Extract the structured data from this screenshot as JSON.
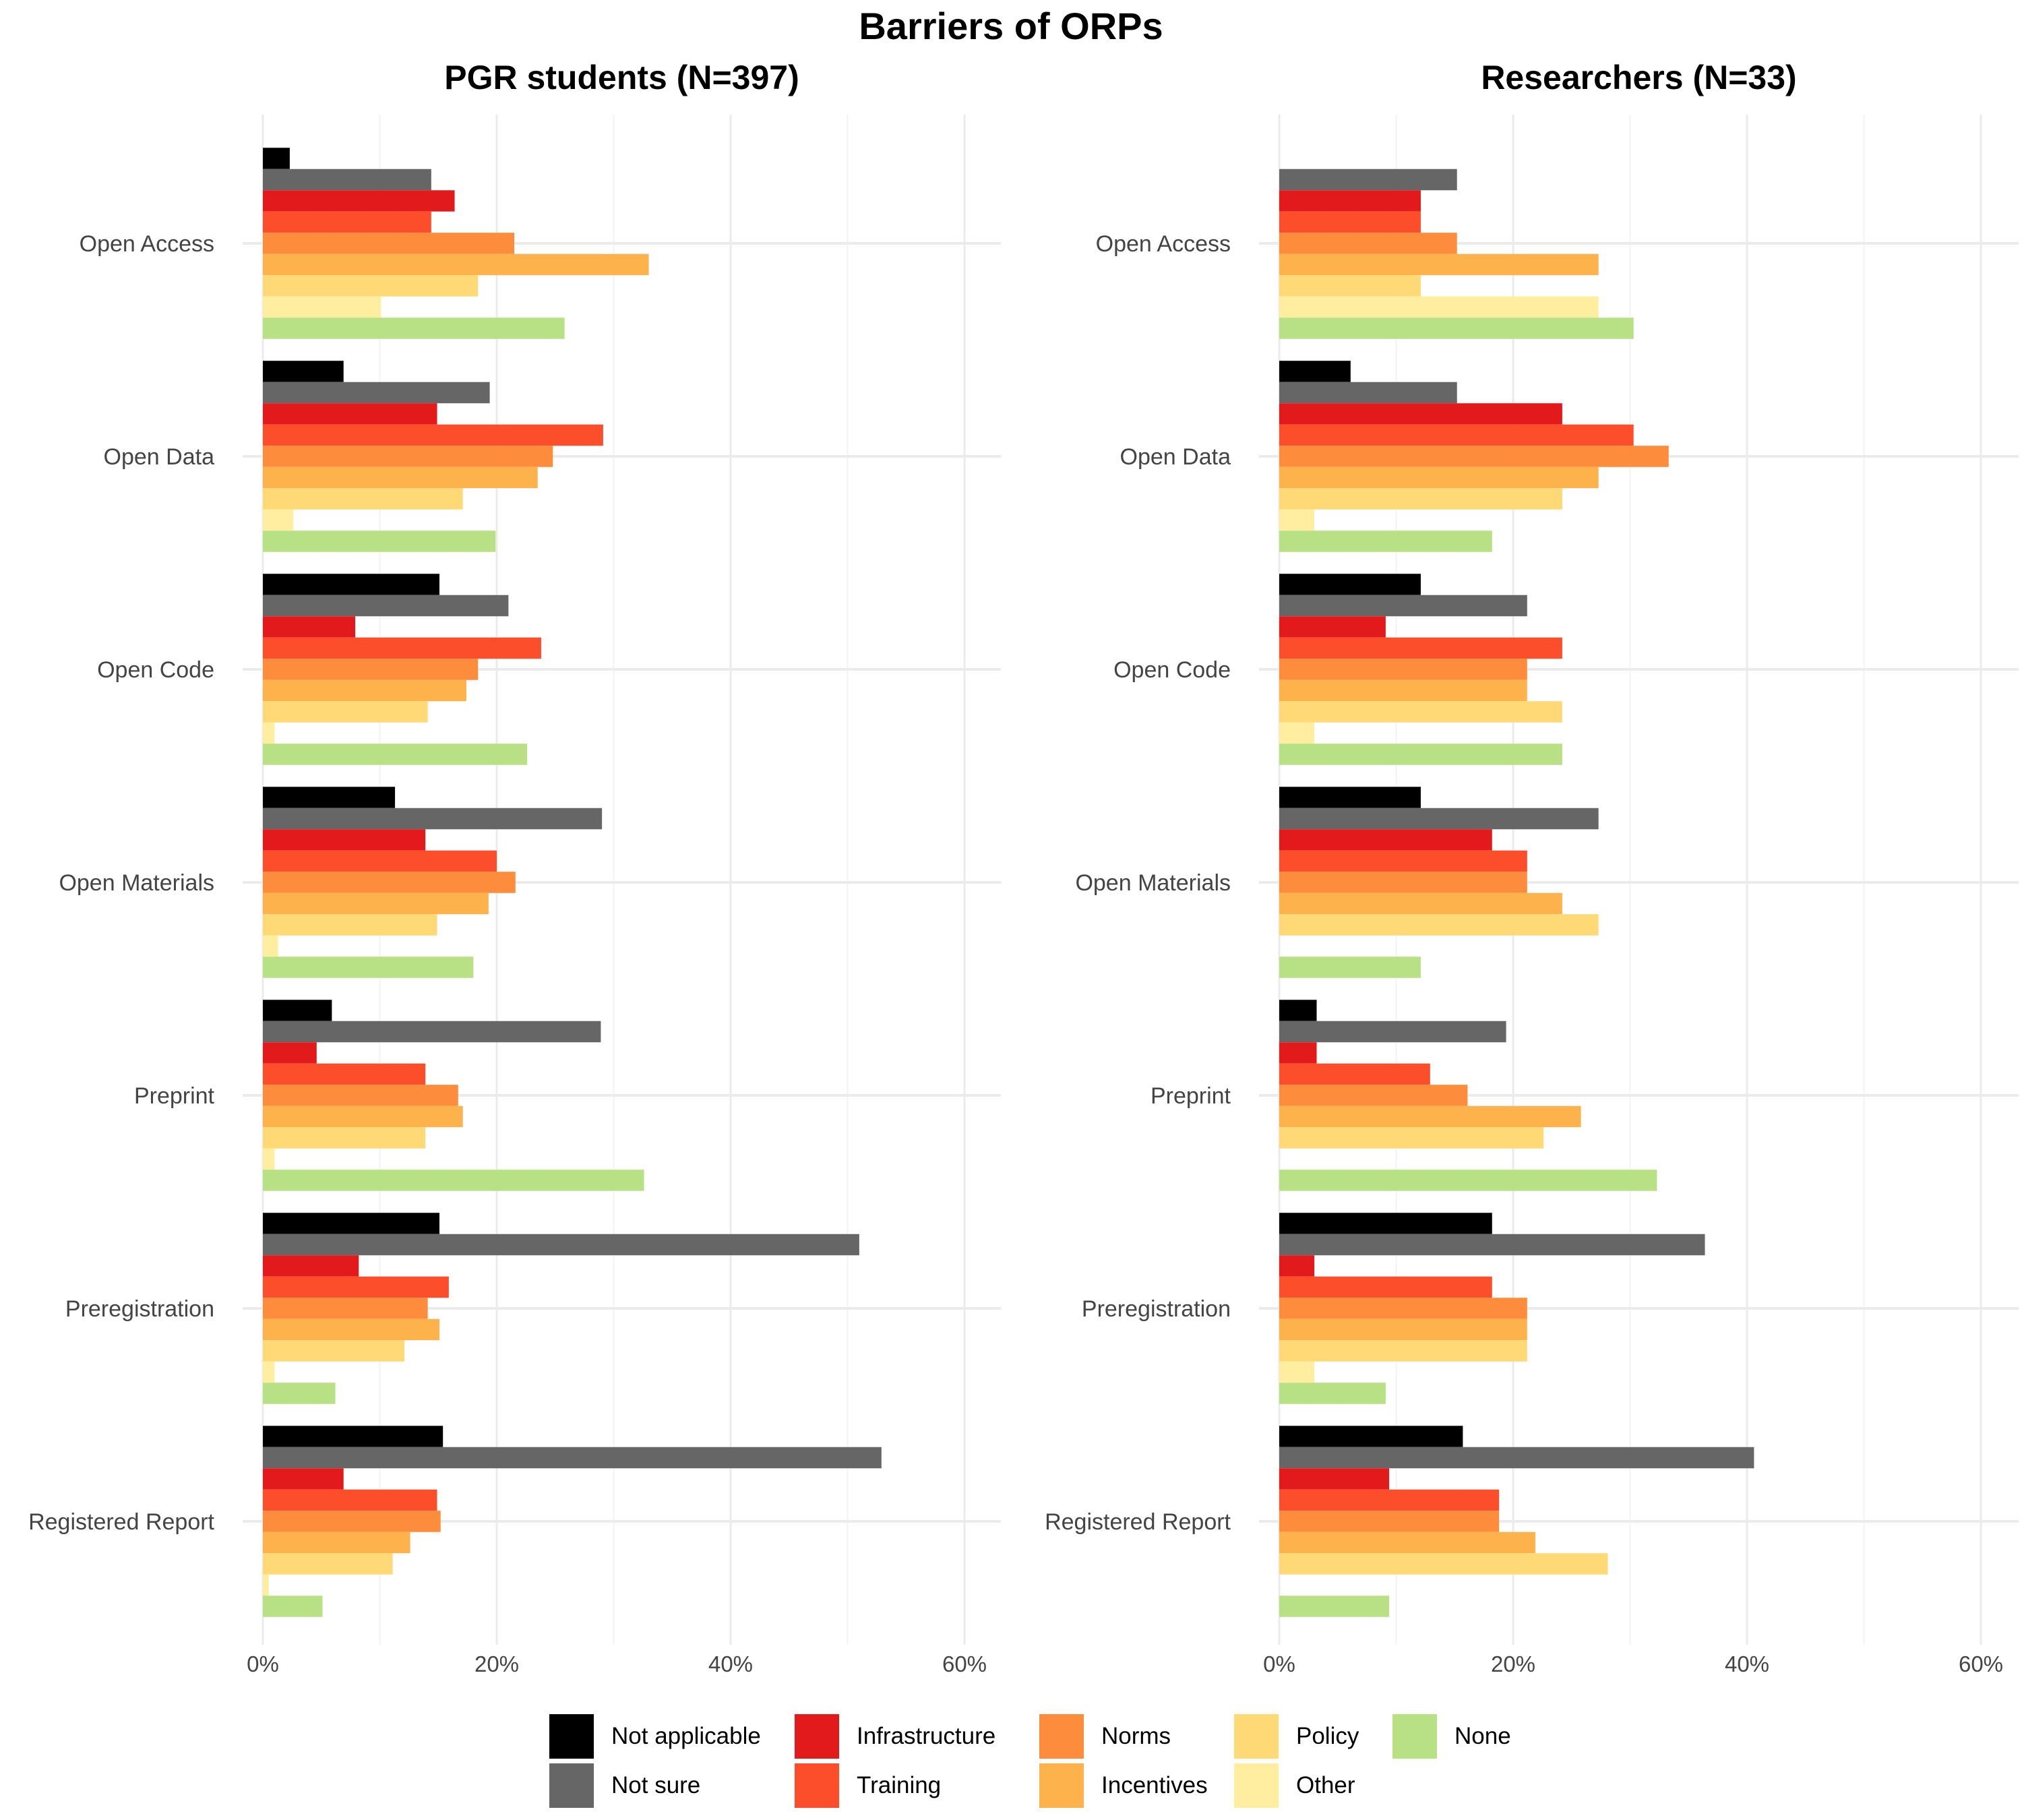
{
  "chart_data": {
    "type": "bar",
    "orientation": "horizontal",
    "title": "Barriers of ORPs",
    "categories": [
      "Open Access",
      "Open Data",
      "Open Code",
      "Open Materials",
      "Preprint",
      "Preregistration",
      "Registered Report"
    ],
    "series_names": [
      "Not applicable",
      "Not sure",
      "Infrastructure",
      "Training",
      "Norms",
      "Incentives",
      "Policy",
      "Other",
      "None"
    ],
    "colors": [
      "#000000",
      "#666666",
      "#E31A1C",
      "#FC4E2A",
      "#FD8D3C",
      "#FEB24C",
      "#FED976",
      "#FFEDA0",
      "#B8E186"
    ],
    "x_ticks": [
      "0%",
      "20%",
      "40%",
      "60%"
    ],
    "xlim": [
      0,
      60
    ],
    "grid": true,
    "legend_position": "bottom",
    "panels": [
      {
        "title": "PGR students (N=397)",
        "series": [
          {
            "name": "Not applicable",
            "values": [
              2.3,
              6.9,
              15.1,
              11.3,
              5.9,
              15.1,
              15.4
            ]
          },
          {
            "name": "Not sure",
            "values": [
              14.4,
              19.4,
              21.0,
              29.0,
              28.9,
              51.0,
              52.9
            ]
          },
          {
            "name": "Infrastructure",
            "values": [
              16.4,
              14.9,
              7.9,
              13.9,
              4.6,
              8.2,
              6.9
            ]
          },
          {
            "name": "Training",
            "values": [
              14.4,
              29.1,
              23.8,
              20.0,
              13.9,
              15.9,
              14.9
            ]
          },
          {
            "name": "Norms",
            "values": [
              21.5,
              24.8,
              18.4,
              21.6,
              16.7,
              14.1,
              15.2
            ]
          },
          {
            "name": "Incentives",
            "values": [
              33.0,
              23.5,
              17.4,
              19.3,
              17.1,
              15.1,
              12.6
            ]
          },
          {
            "name": "Policy",
            "values": [
              18.4,
              17.1,
              14.1,
              14.9,
              13.9,
              12.1,
              11.1
            ]
          },
          {
            "name": "Other",
            "values": [
              10.1,
              2.6,
              1.0,
              1.3,
              1.0,
              1.0,
              0.5
            ]
          },
          {
            "name": "None",
            "values": [
              25.8,
              19.9,
              22.6,
              18.0,
              32.6,
              6.2,
              5.1
            ]
          }
        ]
      },
      {
        "title": "Researchers (N=33)",
        "series": [
          {
            "name": "Not applicable",
            "values": [
              0,
              6.1,
              12.1,
              12.1,
              3.2,
              18.2,
              15.7
            ]
          },
          {
            "name": "Not sure",
            "values": [
              15.2,
              15.2,
              21.2,
              27.3,
              19.4,
              36.4,
              40.6
            ]
          },
          {
            "name": "Infrastructure",
            "values": [
              12.1,
              24.2,
              9.1,
              18.2,
              3.2,
              3.0,
              9.4
            ]
          },
          {
            "name": "Training",
            "values": [
              12.1,
              30.3,
              24.2,
              21.2,
              12.9,
              18.2,
              18.8
            ]
          },
          {
            "name": "Norms",
            "values": [
              15.2,
              33.3,
              21.2,
              21.2,
              16.1,
              21.2,
              18.8
            ]
          },
          {
            "name": "Incentives",
            "values": [
              27.3,
              27.3,
              21.2,
              24.2,
              25.8,
              21.2,
              21.9
            ]
          },
          {
            "name": "Policy",
            "values": [
              12.1,
              24.2,
              24.2,
              27.3,
              22.6,
              21.2,
              28.1
            ]
          },
          {
            "name": "Other",
            "values": [
              27.3,
              3.0,
              3.0,
              0,
              0,
              3.0,
              0
            ]
          },
          {
            "name": "None",
            "values": [
              30.3,
              18.2,
              24.2,
              12.1,
              32.3,
              9.1,
              9.4
            ]
          }
        ]
      }
    ]
  }
}
